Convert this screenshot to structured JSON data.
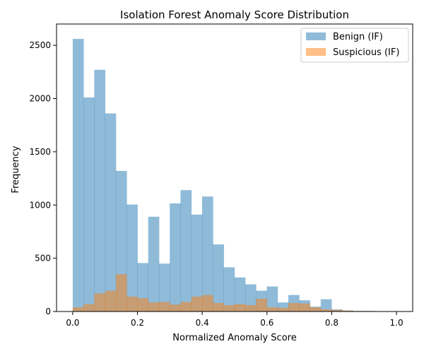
{
  "chart_data": {
    "type": "histogram",
    "title": "Isolation Forest Anomaly Score Distribution",
    "xlabel": "Normalized Anomaly Score",
    "ylabel": "Frequency",
    "xlim": [
      -0.05,
      1.05
    ],
    "ylim": [
      0,
      2700
    ],
    "x_ticks": [
      0.0,
      0.2,
      0.4,
      0.6,
      0.8,
      1.0
    ],
    "x_tick_labels": [
      "0.0",
      "0.2",
      "0.4",
      "0.6",
      "0.8",
      "1.0"
    ],
    "y_ticks": [
      0,
      500,
      1000,
      1500,
      2000,
      2500
    ],
    "y_tick_labels": [
      "0",
      "500",
      "1000",
      "1500",
      "2000",
      "2500"
    ],
    "grid": false,
    "legend_position": "top-right",
    "bin_start": 0.0,
    "bin_width": 0.0333,
    "series": [
      {
        "name": "Benign (IF)",
        "color": "#1f77b4",
        "alpha": 0.5,
        "values": [
          2560,
          2010,
          2270,
          1860,
          1320,
          1005,
          455,
          890,
          450,
          1015,
          1140,
          910,
          1080,
          630,
          415,
          320,
          255,
          195,
          235,
          85,
          155,
          105,
          45,
          115,
          20,
          10,
          5,
          5,
          3,
          2
        ]
      },
      {
        "name": "Suspicious (IF)",
        "color": "#ff7f0e",
        "alpha": 0.5,
        "values": [
          40,
          70,
          170,
          195,
          350,
          140,
          125,
          85,
          90,
          65,
          90,
          140,
          155,
          80,
          60,
          70,
          60,
          120,
          40,
          35,
          80,
          75,
          40,
          20,
          15,
          8,
          5,
          5,
          3,
          2
        ]
      }
    ]
  }
}
